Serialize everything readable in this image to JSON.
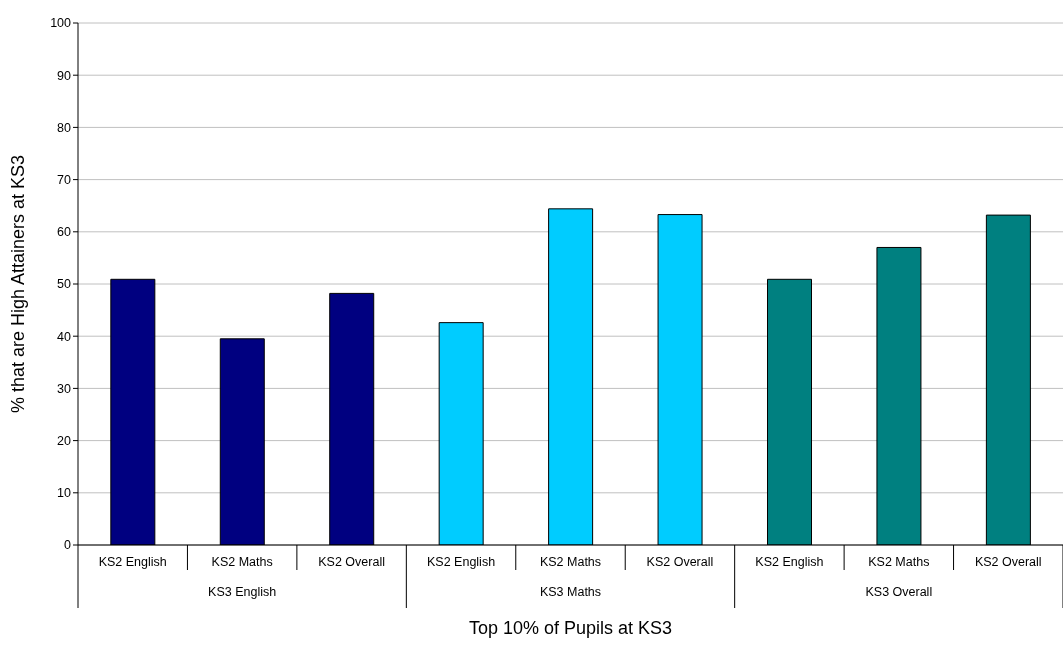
{
  "chart_data": {
    "type": "bar",
    "xlabel": "Top 10% of Pupils at KS3",
    "ylabel": "% that are High Attainers at KS3",
    "categories": [
      "KS2 English",
      "KS2 Maths",
      "KS2 Overall",
      "KS2 English",
      "KS2 Maths",
      "KS2 Overall",
      "KS2 English",
      "KS2 Maths",
      "KS2 Overall"
    ],
    "values": [
      50.9,
      39.5,
      48.2,
      42.6,
      64.4,
      63.3,
      50.9,
      57.0,
      63.2
    ],
    "colors": [
      "#000080",
      "#000080",
      "#000080",
      "#00ccff",
      "#00ccff",
      "#00ccff",
      "#008080",
      "#008080",
      "#008080"
    ],
    "annotations": [
      "KS3 English",
      "KS3 Maths",
      "KS3 Overall"
    ],
    "ylim": [
      0,
      100
    ],
    "yticks": [
      0,
      10,
      20,
      30,
      40,
      50,
      60,
      70,
      80,
      90,
      100
    ],
    "grid": "y",
    "legend": false
  }
}
